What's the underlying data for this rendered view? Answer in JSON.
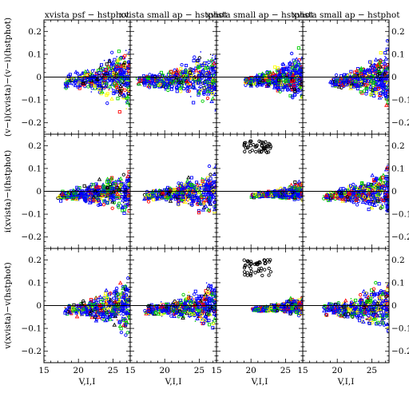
{
  "chart_data": {
    "type": "scatter",
    "layout": {
      "rows": 3,
      "cols": 4
    },
    "column_titles": [
      "xvista psf − hstphot",
      "xvista small ap − hstphot",
      "xvista small ap − hstphot",
      "xvista small ap − hstphot"
    ],
    "row_ylabels": [
      "(v−i)(xvista)−(v−i)(hstphot)",
      "i(xvista)−i(hstphot)",
      "v(xvista)−v(hstphot)"
    ],
    "xlabel": "V,I,I",
    "xlim": [
      15,
      27.5
    ],
    "ylim": [
      -0.25,
      0.25
    ],
    "x_ticks": [
      15,
      20,
      25
    ],
    "y_ticks": [
      -0.2,
      -0.1,
      0,
      0.1,
      0.2
    ],
    "x_tick_labels": [
      "15",
      "20",
      "25"
    ],
    "y_tick_labels": [
      "−0.2",
      "−0.1",
      "0",
      "0.1",
      "0.2"
    ],
    "y_tick_labels_right": [
      "−0.2",
      "−0.1",
      "0",
      "0.1",
      "0.2"
    ],
    "reference_line": 0,
    "series_colors": [
      "#ff0000",
      "#00cc00",
      "#ffff00",
      "#0000ff",
      "#000000"
    ],
    "series_colors_named": [
      "red",
      "green",
      "yellow",
      "blue",
      "black"
    ],
    "panels": [
      {
        "row": 0,
        "col": 0,
        "core_x": [
          18,
          24
        ],
        "spread": 0.07,
        "outlier_cluster": null
      },
      {
        "row": 0,
        "col": 1,
        "core_x": [
          16,
          25
        ],
        "spread": 0.06,
        "outlier_cluster": null
      },
      {
        "row": 0,
        "col": 2,
        "core_x": [
          19,
          26
        ],
        "spread": 0.05,
        "outlier_cluster": null
      },
      {
        "row": 0,
        "col": 3,
        "core_x": [
          19,
          26
        ],
        "spread": 0.06,
        "outlier_cluster": null
      },
      {
        "row": 1,
        "col": 0,
        "core_x": [
          17,
          25
        ],
        "spread": 0.05,
        "outlier_cluster": null
      },
      {
        "row": 1,
        "col": 1,
        "core_x": [
          17,
          25
        ],
        "spread": 0.05,
        "outlier_cluster": null
      },
      {
        "row": 1,
        "col": 2,
        "core_x": [
          20,
          26
        ],
        "spread": 0.02,
        "outlier_cluster": {
          "x": [
            19,
            23
          ],
          "y": [
            0.17,
            0.22
          ]
        }
      },
      {
        "row": 1,
        "col": 3,
        "core_x": [
          18,
          26
        ],
        "spread": 0.05,
        "outlier_cluster": null
      },
      {
        "row": 2,
        "col": 0,
        "core_x": [
          18,
          24
        ],
        "spread": 0.06,
        "outlier_cluster": null
      },
      {
        "row": 2,
        "col": 1,
        "core_x": [
          17,
          25
        ],
        "spread": 0.05,
        "outlier_cluster": null
      },
      {
        "row": 2,
        "col": 2,
        "core_x": [
          20,
          26
        ],
        "spread": 0.02,
        "outlier_cluster": {
          "x": [
            19,
            23
          ],
          "y": [
            0.13,
            0.2
          ]
        }
      },
      {
        "row": 2,
        "col": 3,
        "core_x": [
          18,
          26
        ],
        "spread": 0.06,
        "outlier_cluster": null
      }
    ]
  }
}
